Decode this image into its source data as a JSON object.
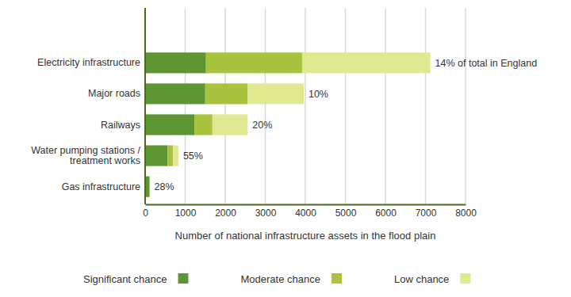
{
  "chart_data": {
    "type": "bar",
    "orientation": "horizontal",
    "stacked": true,
    "categories": [
      "Electricity infrastructure",
      "Major roads",
      "Railways",
      "Water pumping stations / treatment works",
      "Gas infrastructure"
    ],
    "series": [
      {
        "name": "Significant chance",
        "color": "#5f9634",
        "values": [
          1520,
          1500,
          1230,
          560,
          110
        ]
      },
      {
        "name": "Moderate chance",
        "color": "#a9c33e",
        "values": [
          2400,
          1060,
          450,
          140,
          0
        ]
      },
      {
        "name": "Low chance",
        "color": "#e0e98f",
        "values": [
          3200,
          1400,
          880,
          130,
          0
        ]
      }
    ],
    "annotations": [
      "14% of total in England",
      "10%",
      "20%",
      "55%",
      "28%"
    ],
    "x_label": "Number of national infrastructure assets in the flood plain",
    "xlim": [
      0,
      8000
    ],
    "xticks": [
      0,
      1000,
      2000,
      3000,
      4000,
      5000,
      6000,
      7000,
      8000
    ],
    "grid": true,
    "legend": "bottom"
  }
}
